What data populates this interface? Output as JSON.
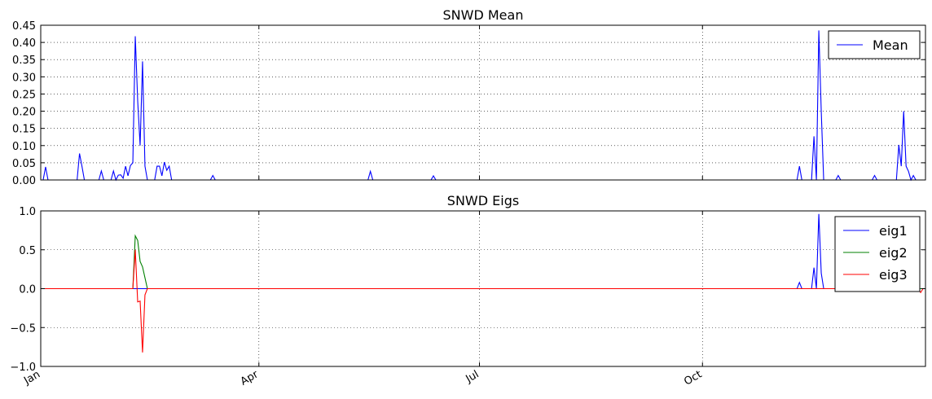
{
  "chart_data": [
    {
      "type": "line",
      "title": "SNWD Mean",
      "xlabel": "",
      "ylabel": "",
      "xlim": [
        0,
        365
      ],
      "ylim": [
        0,
        0.45
      ],
      "yticks": [
        "0.00",
        "0.05",
        "0.10",
        "0.15",
        "0.20",
        "0.25",
        "0.30",
        "0.35",
        "0.40",
        "0.45"
      ],
      "xticks": [
        {
          "day": 0,
          "label": "Jan"
        },
        {
          "day": 90,
          "label": "Apr"
        },
        {
          "day": 181,
          "label": "Jul"
        },
        {
          "day": 273,
          "label": "Oct"
        }
      ],
      "grid": true,
      "legend": "top-right",
      "series": [
        {
          "name": "Mean",
          "color": "#0000ff",
          "points": [
            [
              0,
              0
            ],
            [
              1,
              0
            ],
            [
              2,
              0.038
            ],
            [
              3,
              0
            ],
            [
              4,
              0
            ],
            [
              14,
              0
            ],
            [
              15,
              0
            ],
            [
              16,
              0.077
            ],
            [
              17,
              0.04
            ],
            [
              18,
              0
            ],
            [
              24,
              0
            ],
            [
              25,
              0.026
            ],
            [
              26,
              0
            ],
            [
              28,
              0
            ],
            [
              29,
              0
            ],
            [
              30,
              0.026
            ],
            [
              31,
              0
            ],
            [
              32,
              0.014
            ],
            [
              33,
              0.015
            ],
            [
              34,
              0.005
            ],
            [
              35,
              0.04
            ],
            [
              36,
              0.012
            ],
            [
              37,
              0.042
            ],
            [
              38,
              0.05
            ],
            [
              39,
              0.418
            ],
            [
              40,
              0.23
            ],
            [
              41,
              0.1
            ],
            [
              42,
              0.345
            ],
            [
              43,
              0.04
            ],
            [
              44,
              0
            ],
            [
              47,
              0
            ],
            [
              48,
              0.04
            ],
            [
              49,
              0.04
            ],
            [
              50,
              0.012
            ],
            [
              51,
              0.052
            ],
            [
              52,
              0.028
            ],
            [
              53,
              0.04
            ],
            [
              54,
              0
            ],
            [
              70,
              0
            ],
            [
              71,
              0.013
            ],
            [
              72,
              0
            ],
            [
              135,
              0
            ],
            [
              136,
              0.025
            ],
            [
              137,
              0
            ],
            [
              161,
              0
            ],
            [
              162,
              0.012
            ],
            [
              163,
              0
            ],
            [
              312,
              0
            ],
            [
              313,
              0.04
            ],
            [
              314,
              0
            ],
            [
              318,
              0
            ],
            [
              319,
              0.127
            ],
            [
              320,
              0
            ],
            [
              321,
              0.435
            ],
            [
              322,
              0.2
            ],
            [
              323,
              0
            ],
            [
              328,
              0
            ],
            [
              329,
              0.013
            ],
            [
              330,
              0
            ],
            [
              343,
              0
            ],
            [
              344,
              0.013
            ],
            [
              345,
              0
            ],
            [
              353,
              0
            ],
            [
              354,
              0.102
            ],
            [
              355,
              0.04
            ],
            [
              356,
              0.2
            ],
            [
              357,
              0.04
            ],
            [
              358,
              0.025
            ],
            [
              359,
              0
            ],
            [
              360,
              0.013
            ],
            [
              361,
              0
            ],
            [
              365,
              0
            ]
          ]
        }
      ]
    },
    {
      "type": "line",
      "title": "SNWD Eigs",
      "xlabel": "",
      "ylabel": "",
      "xlim": [
        0,
        365
      ],
      "ylim": [
        -1.0,
        1.0
      ],
      "yticks": [
        "−1.0",
        "−0.5",
        "0.0",
        "0.5",
        "1.0"
      ],
      "xticks": [
        {
          "day": 0,
          "label": "Jan"
        },
        {
          "day": 90,
          "label": "Apr"
        },
        {
          "day": 181,
          "label": "Jul"
        },
        {
          "day": 273,
          "label": "Oct"
        }
      ],
      "grid": true,
      "legend": "top-right",
      "series": [
        {
          "name": "eig1",
          "color": "#0000ff",
          "points": [
            [
              0,
              0
            ],
            [
              312,
              0
            ],
            [
              313,
              0.08
            ],
            [
              314,
              0
            ],
            [
              318,
              0
            ],
            [
              319,
              0.27
            ],
            [
              320,
              0
            ],
            [
              321,
              0.96
            ],
            [
              322,
              0.2
            ],
            [
              323,
              0
            ],
            [
              365,
              0
            ]
          ]
        },
        {
          "name": "eig2",
          "color": "#008000",
          "points": [
            [
              0,
              0
            ],
            [
              38,
              0
            ],
            [
              39,
              0.68
            ],
            [
              40,
              0.62
            ],
            [
              41,
              0.35
            ],
            [
              42,
              0.28
            ],
            [
              43,
              0.14
            ],
            [
              44,
              0
            ],
            [
              365,
              0
            ]
          ]
        },
        {
          "name": "eig3",
          "color": "#ff0000",
          "points": [
            [
              0,
              0
            ],
            [
              38,
              0
            ],
            [
              39,
              0.5
            ],
            [
              40,
              -0.17
            ],
            [
              41,
              -0.16
            ],
            [
              42,
              -0.82
            ],
            [
              43,
              -0.08
            ],
            [
              44,
              0
            ],
            [
              362,
              0
            ],
            [
              363,
              -0.05
            ],
            [
              364,
              0
            ],
            [
              365,
              0
            ]
          ]
        }
      ]
    }
  ]
}
